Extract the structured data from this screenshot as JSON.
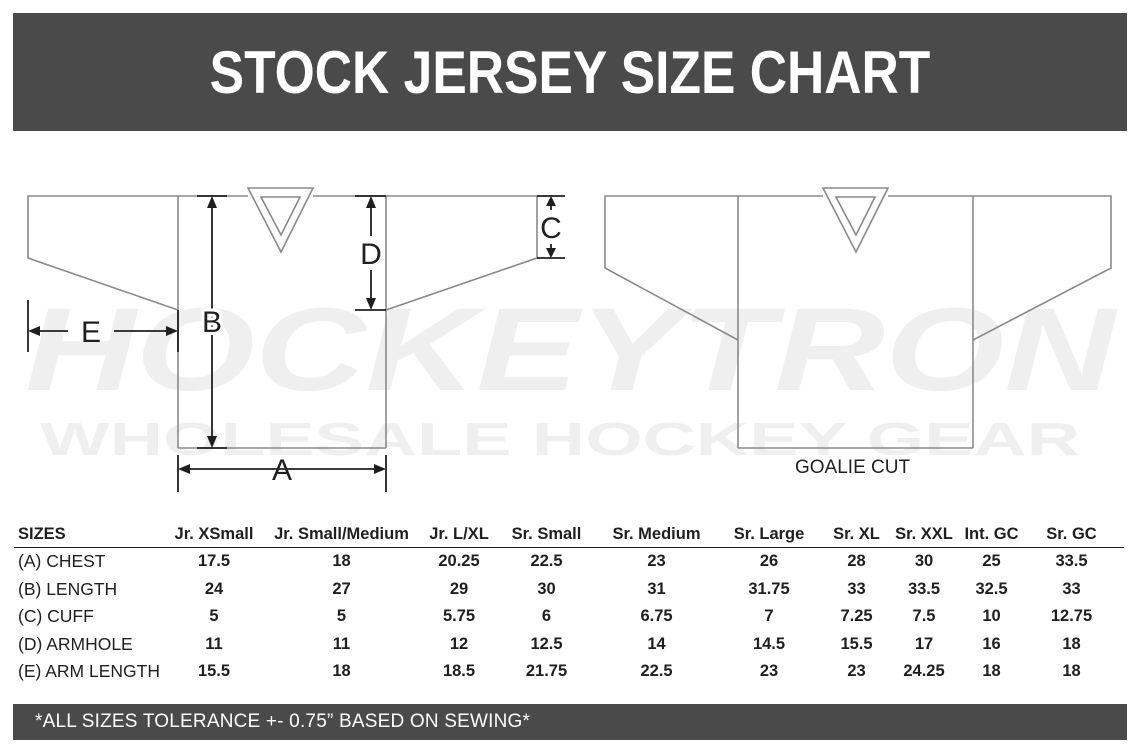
{
  "title": "STOCK JERSEY SIZE CHART",
  "watermark": {
    "brand": "HOCKEYTRON",
    "tagline": "WHOLESALE HOCKEY GEAR"
  },
  "diagram": {
    "labels": {
      "a": "A",
      "b": "B",
      "c": "C",
      "d": "D",
      "e": "E"
    },
    "goalie_label": "GOALIE CUT"
  },
  "size_table": {
    "header": "SIZES",
    "columns": [
      "Jr. XSmall",
      "Jr. Small/Medium",
      "Jr. L/XL",
      "Sr. Small",
      "Sr. Medium",
      "Sr. Large",
      "Sr. XL",
      "Sr. XXL",
      "Int. GC",
      "Sr. GC"
    ],
    "rows": [
      {
        "label": "(A) CHEST",
        "values": [
          "17.5",
          "18",
          "20.25",
          "22.5",
          "23",
          "26",
          "28",
          "30",
          "25",
          "33.5"
        ]
      },
      {
        "label": "(B) LENGTH",
        "values": [
          "24",
          "27",
          "29",
          "30",
          "31",
          "31.75",
          "33",
          "33.5",
          "32.5",
          "33"
        ]
      },
      {
        "label": "(C) CUFF",
        "values": [
          "5",
          "5",
          "5.75",
          "6",
          "6.75",
          "7",
          "7.25",
          "7.5",
          "10",
          "12.75"
        ]
      },
      {
        "label": "(D) ARMHOLE",
        "values": [
          "11",
          "11",
          "12",
          "12.5",
          "14",
          "14.5",
          "15.5",
          "17",
          "16",
          "18"
        ]
      },
      {
        "label": "(E) ARM LENGTH",
        "values": [
          "15.5",
          "18",
          "18.5",
          "21.75",
          "22.5",
          "23",
          "23",
          "24.25",
          "18",
          "18"
        ]
      }
    ]
  },
  "footer": "*ALL SIZES TOLERANCE +- 0.75” BASED ON SEWING*",
  "colors": {
    "bar": "#4a4a4a",
    "bar_text": "#ffffff",
    "outline": "#8a8a8a",
    "dimension": "#1f1f1f",
    "watermark": "#efefef"
  }
}
